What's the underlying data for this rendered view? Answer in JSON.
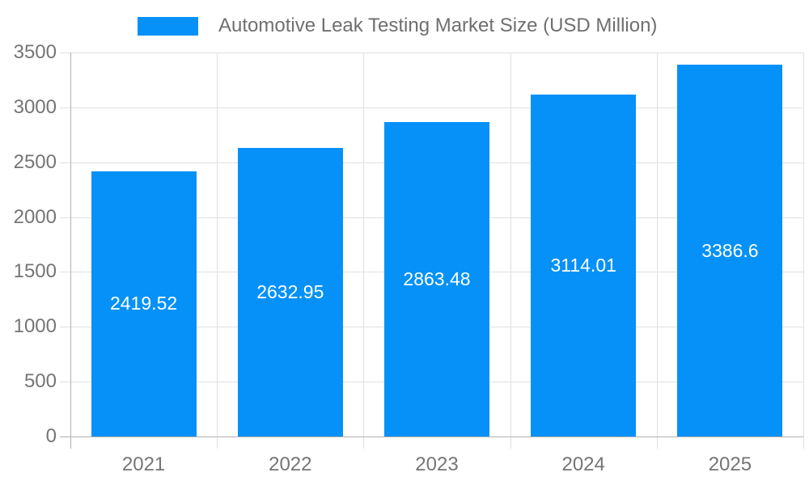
{
  "legend": {
    "label": "Automotive Leak Testing Market Size (USD Million)"
  },
  "colors": {
    "bar": "#0591f8",
    "grid": "#e0e0e0",
    "axis": "#b0b0b0",
    "axis_text": "#757575",
    "legend_text": "#6f6f6f",
    "value_text": "#ffffff",
    "background": "#ffffff"
  },
  "chart_data": {
    "type": "bar",
    "title": "Automotive Leak Testing Market Size (USD Million)",
    "categories": [
      "2021",
      "2022",
      "2023",
      "2024",
      "2025"
    ],
    "values": [
      2419.52,
      2632.95,
      2863.48,
      3114.01,
      3386.6
    ],
    "value_labels": [
      "2419.52",
      "2632.95",
      "2863.48",
      "3114.01",
      "3386.6"
    ],
    "series_name": "Automotive Leak Testing Market Size (USD Million)",
    "xlabel": "",
    "ylabel": "",
    "ylim": [
      0,
      3500
    ],
    "yticks": [
      0,
      500,
      1000,
      1500,
      2000,
      2500,
      3000,
      3500
    ],
    "ytick_labels": [
      "0",
      "500",
      "1000",
      "1500",
      "2000",
      "2500",
      "3000",
      "3500"
    ],
    "grid": "both",
    "legend_position": "top",
    "value_label_position": "center-of-bar"
  }
}
